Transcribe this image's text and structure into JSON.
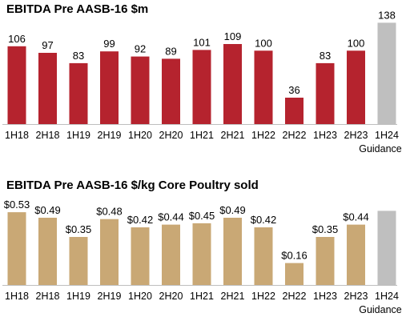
{
  "chart_data": [
    {
      "type": "bar",
      "title": "EBITDA Pre AASB-16 $m",
      "categories": [
        "1H18",
        "2H18",
        "1H19",
        "2H19",
        "1H20",
        "2H20",
        "1H21",
        "2H21",
        "1H22",
        "2H22",
        "1H23",
        "2H23",
        "1H24"
      ],
      "values": [
        106,
        97,
        83,
        99,
        92,
        89,
        101,
        109,
        100,
        36,
        83,
        100,
        138
      ],
      "data_labels": [
        "106",
        "97",
        "83",
        "99",
        "92",
        "89",
        "101",
        "109",
        "100",
        "36",
        "83",
        "100",
        "138"
      ],
      "category_note": "Guidance",
      "colors": {
        "actual": "#b5232e",
        "guidance": "#bfbfbf"
      },
      "ylim": [
        0,
        145
      ],
      "grid": false
    },
    {
      "type": "bar",
      "title": "EBITDA Pre AASB-16 $/kg Core Poultry sold",
      "categories": [
        "1H18",
        "2H18",
        "1H19",
        "2H19",
        "1H20",
        "2H20",
        "1H21",
        "2H21",
        "1H22",
        "2H22",
        "1H23",
        "2H23",
        "1H24"
      ],
      "values": [
        0.53,
        0.49,
        0.35,
        0.48,
        0.42,
        0.44,
        0.45,
        0.49,
        0.42,
        0.16,
        0.35,
        0.44,
        0.54
      ],
      "data_labels": [
        "$0.53",
        "$0.49",
        "$0.35",
        "$0.48",
        "$0.42",
        "$0.44",
        "$0.45",
        "$0.49",
        "$0.42",
        "$0.16",
        "$0.35",
        "$0.44",
        ""
      ],
      "category_note": "Guidance",
      "colors": {
        "actual": "#c9a875",
        "guidance": "#bfbfbf"
      },
      "ylim": [
        0,
        0.56
      ],
      "grid": false
    }
  ]
}
